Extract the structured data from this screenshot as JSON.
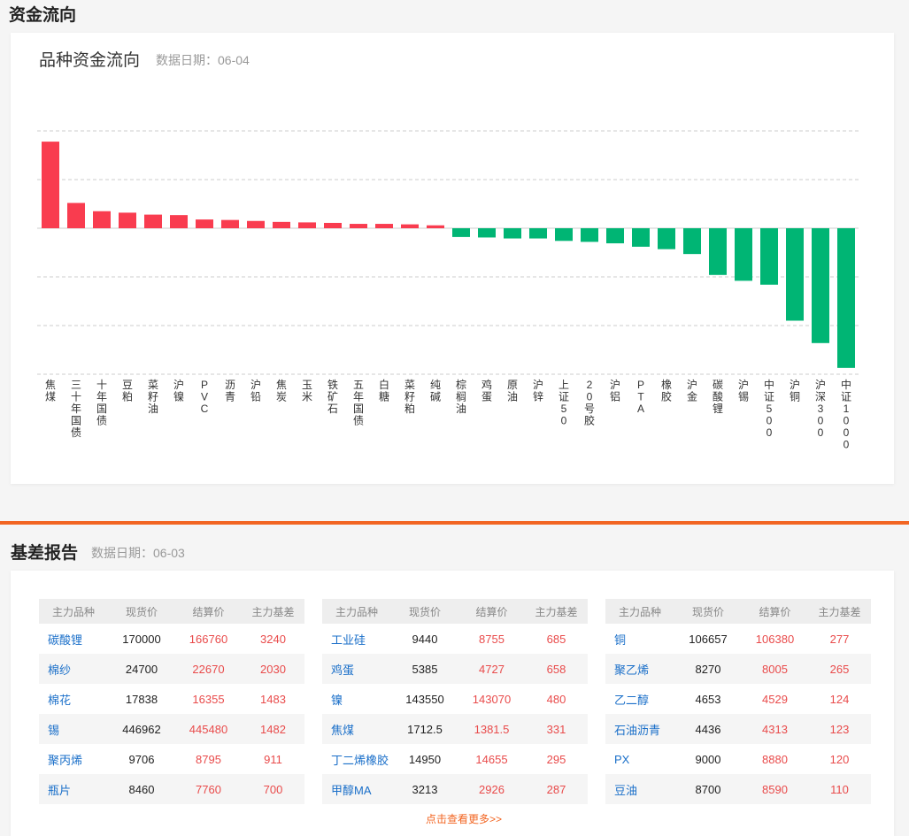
{
  "section1": {
    "title": "资金流向"
  },
  "fund_card": {
    "title": "品种资金流向",
    "date_label": "数据日期：06-04"
  },
  "chart_data": {
    "type": "bar",
    "title": "品种资金流向",
    "categories": [
      "焦煤",
      "三十年国债",
      "十年国债",
      "豆粕",
      "菜籽油",
      "沪镍",
      "PVC",
      "沥青",
      "沪铅",
      "焦炭",
      "玉米",
      "铁矿石",
      "五年国债",
      "白糖",
      "菜籽粕",
      "纯碱",
      "棕榈油",
      "鸡蛋",
      "原油",
      "沪锌",
      "上证50",
      "20号胶",
      "沪铝",
      "PTA",
      "橡胶",
      "沪金",
      "碳酸锂",
      "沪锡",
      "中证500",
      "沪铜",
      "沪深300",
      "中证1000"
    ],
    "values": [
      17.8,
      5.2,
      3.5,
      3.2,
      2.8,
      2.7,
      1.8,
      1.7,
      1.5,
      1.3,
      1.2,
      1.1,
      0.9,
      0.9,
      0.8,
      0.6,
      -1.8,
      -1.9,
      -2.1,
      -2.1,
      -2.6,
      -2.8,
      -3.1,
      -3.8,
      -4.3,
      -5.3,
      -9.6,
      -10.8,
      -11.6,
      -19.0,
      -23.6,
      -28.7
    ],
    "ylim": [
      -30,
      20
    ],
    "grid": true,
    "colors": {
      "positive": "#f93c4f",
      "negative": "#00b574"
    }
  },
  "section2": {
    "title": "基差报告",
    "date_label": "数据日期：06-03"
  },
  "basis_table": {
    "headers": [
      "主力品种",
      "现货价",
      "结算价",
      "主力基差"
    ],
    "tables": [
      [
        [
          "碳酸锂",
          "170000",
          "166760",
          "3240"
        ],
        [
          "棉纱",
          "24700",
          "22670",
          "2030"
        ],
        [
          "棉花",
          "17838",
          "16355",
          "1483"
        ],
        [
          "锡",
          "446962",
          "445480",
          "1482"
        ],
        [
          "聚丙烯",
          "9706",
          "8795",
          "911"
        ],
        [
          "瓶片",
          "8460",
          "7760",
          "700"
        ]
      ],
      [
        [
          "工业硅",
          "9440",
          "8755",
          "685"
        ],
        [
          "鸡蛋",
          "5385",
          "4727",
          "658"
        ],
        [
          "镍",
          "143550",
          "143070",
          "480"
        ],
        [
          "焦煤",
          "1712.5",
          "1381.5",
          "331"
        ],
        [
          "丁二烯橡胶",
          "14950",
          "14655",
          "295"
        ],
        [
          "甲醇MA",
          "3213",
          "2926",
          "287"
        ]
      ],
      [
        [
          "铜",
          "106657",
          "106380",
          "277"
        ],
        [
          "聚乙烯",
          "8270",
          "8005",
          "265"
        ],
        [
          "乙二醇",
          "4653",
          "4529",
          "124"
        ],
        [
          "石油沥青",
          "4436",
          "4313",
          "123"
        ],
        [
          "PX",
          "9000",
          "8880",
          "120"
        ],
        [
          "豆油",
          "8700",
          "8590",
          "110"
        ]
      ]
    ]
  },
  "more_link": "点击查看更多>>"
}
